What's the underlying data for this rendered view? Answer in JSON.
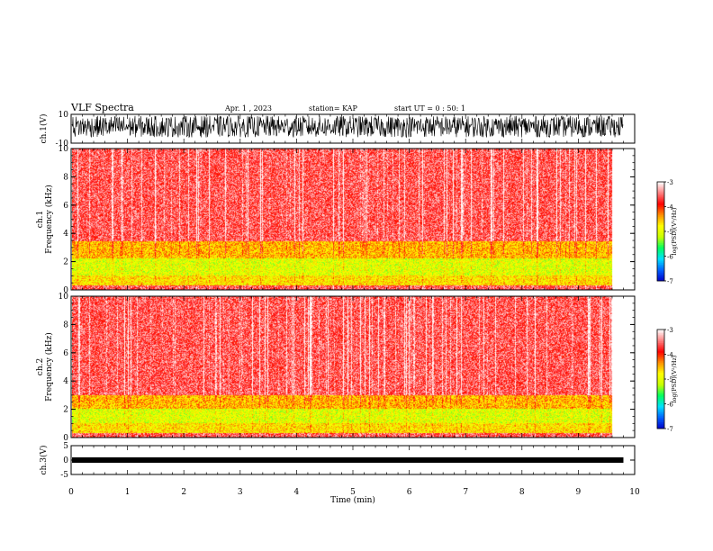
{
  "header": {
    "title": "VLF Spectra",
    "date": "Apr. 1 , 2023",
    "station": "station= KAP",
    "start": "start UT = 0 : 50: 1"
  },
  "colors": {
    "colormap": [
      "#0000c8",
      "#0060ff",
      "#00e0ff",
      "#00ff60",
      "#c8ff00",
      "#ffff00",
      "#ff9000",
      "#ff0000",
      "#ff8080",
      "#ffffff"
    ],
    "trace": "#000000",
    "frame": "#000000"
  },
  "chart_data": [
    {
      "type": "line",
      "panel": "ch1-waveform",
      "ylabel": "ch.1(V)",
      "yticks": [
        "10",
        "-10"
      ],
      "ylim": [
        -10,
        10
      ],
      "xlim": [
        0,
        10
      ],
      "description_of_signal": "dense noisy trace spanning approx -8 to +10 V, data ends at ~9.8 min"
    },
    {
      "type": "heatmap",
      "panel": "ch1-spectrogram",
      "ylabel": "ch.1 Frequency (kHz)",
      "yticks": [
        "0",
        "2",
        "4",
        "6",
        "8",
        "10"
      ],
      "ylim": [
        0,
        10
      ],
      "xlim": [
        0,
        10
      ],
      "data_end_min": 9.8,
      "colorbar": {
        "label": "log(PSD)(V²/Hz)",
        "ticks": [
          "-3",
          "-4",
          "-5",
          "-6",
          "-7"
        ],
        "range": [
          -7,
          -3
        ]
      },
      "bands": [
        {
          "fmin": 0.0,
          "fmax": 0.3,
          "level": -3.6
        },
        {
          "fmin": 0.3,
          "fmax": 1.0,
          "level": -4.7
        },
        {
          "fmin": 1.0,
          "fmax": 2.2,
          "level": -5.0
        },
        {
          "fmin": 2.2,
          "fmax": 3.4,
          "level": -4.5
        },
        {
          "fmin": 3.4,
          "fmax": 10.0,
          "level": -3.6
        }
      ]
    },
    {
      "type": "heatmap",
      "panel": "ch2-spectrogram",
      "ylabel": "ch.2 Frequency (kHz)",
      "yticks": [
        "0",
        "2",
        "4",
        "6",
        "8",
        "10"
      ],
      "ylim": [
        0,
        10
      ],
      "xlim": [
        0,
        10
      ],
      "data_end_min": 9.8,
      "colorbar": {
        "label": "log(PSD)(V²/Hz)",
        "ticks": [
          "-3",
          "-4",
          "-5",
          "-6",
          "-7"
        ],
        "range": [
          -7,
          -3
        ]
      },
      "bands": [
        {
          "fmin": 0.0,
          "fmax": 0.3,
          "level": -3.6
        },
        {
          "fmin": 0.3,
          "fmax": 1.0,
          "level": -4.7
        },
        {
          "fmin": 1.0,
          "fmax": 2.0,
          "level": -5.0
        },
        {
          "fmin": 2.0,
          "fmax": 3.0,
          "level": -4.5
        },
        {
          "fmin": 3.0,
          "fmax": 10.0,
          "level": -3.6
        }
      ]
    },
    {
      "type": "line",
      "panel": "ch3-waveform",
      "ylabel": "ch.3(V)",
      "yticks": [
        "5",
        "0",
        "-5"
      ],
      "ylim": [
        -5,
        5
      ],
      "xlim": [
        0,
        10
      ],
      "level": 0,
      "description_of_signal": "thick flat band near 0 V up to ~9.8 min"
    }
  ],
  "xaxis": {
    "label": "Time (min)",
    "ticks": [
      "0",
      "1",
      "2",
      "3",
      "4",
      "5",
      "6",
      "7",
      "8",
      "9",
      "10"
    ]
  }
}
